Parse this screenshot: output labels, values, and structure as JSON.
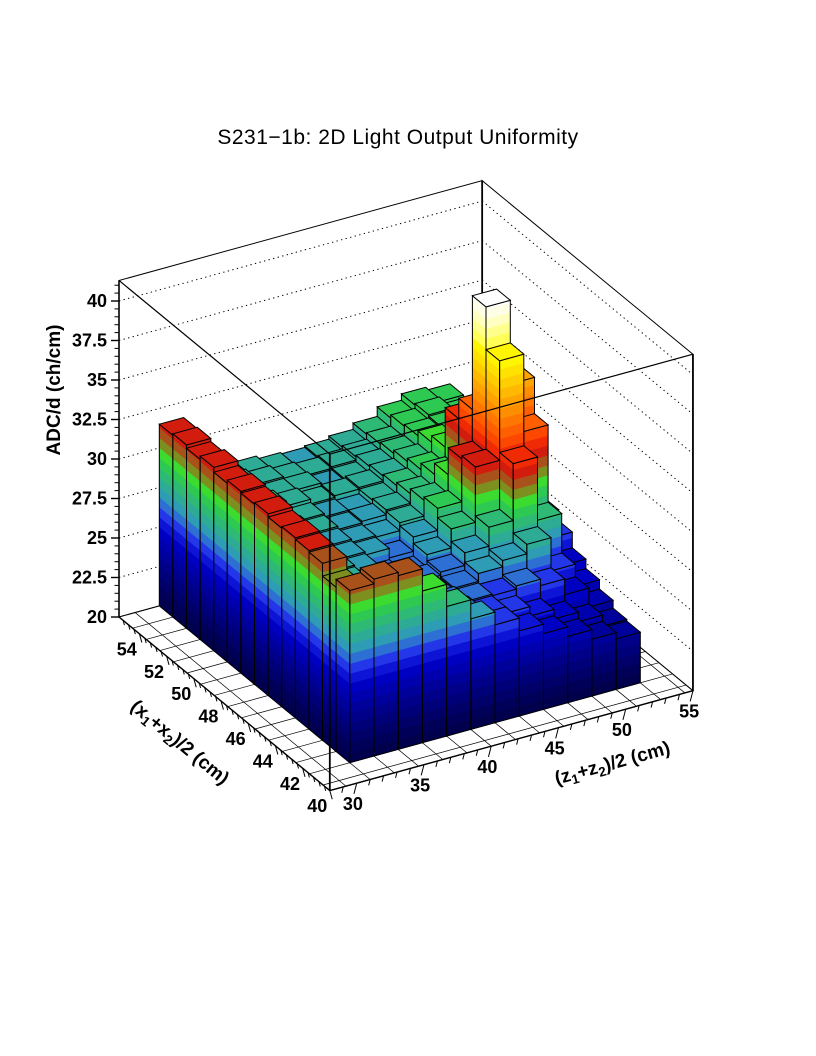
{
  "title": "S231−1b: 2D Light Output Uniformity",
  "chart_data": {
    "type": "heatmap",
    "representation": "3d_lego_histogram",
    "title": "S231−1b: 2D Light Output Uniformity",
    "x_axis": {
      "title_parts": [
        [
          "(x",
          false
        ],
        [
          "1",
          true
        ],
        [
          "+x",
          false
        ],
        [
          "2",
          true
        ],
        [
          ")/2 (cm)",
          false
        ]
      ],
      "tick_labels": [
        "40",
        "42",
        "44",
        "46",
        "48",
        "50",
        "52",
        "54"
      ],
      "tick_values": [
        40,
        42,
        44,
        46,
        48,
        50,
        52,
        54
      ],
      "minor_step": 0.4,
      "range": [
        40,
        55.5
      ]
    },
    "y_axis": {
      "title_parts": [
        [
          "(z",
          false
        ],
        [
          "1",
          true
        ],
        [
          "+z",
          false
        ],
        [
          "2",
          true
        ],
        [
          ")/2 (cm)",
          false
        ]
      ],
      "tick_labels": [
        "30",
        "35",
        "40",
        "45",
        "50",
        "55"
      ],
      "tick_values": [
        30,
        35,
        40,
        45,
        50,
        55
      ],
      "minor_step": 1,
      "range": [
        28,
        55
      ]
    },
    "z_axis": {
      "title_parts": [
        [
          "ADC/d (ch/cm)",
          false
        ]
      ],
      "tick_labels": [
        "20",
        "22.5",
        "25",
        "27.5",
        "30",
        "32.5",
        "35",
        "37.5",
        "40"
      ],
      "tick_values": [
        20,
        22.5,
        25,
        27.5,
        30,
        32.5,
        35,
        37.5,
        40
      ],
      "minor_step": 0.5,
      "range": [
        20,
        41.3
      ]
    },
    "grid": {
      "floor_grid": true,
      "wall_z_gridlines": [
        22.5,
        25,
        27.5,
        30,
        32.5,
        35,
        37.5,
        40
      ],
      "wall_gridline_style": "dotted"
    },
    "bins": {
      "x_centers": [
        42,
        43,
        44,
        45,
        46,
        47,
        48,
        49,
        50,
        51,
        52,
        53,
        54,
        55
      ],
      "x_width": 1.0,
      "y_centers": [
        31.9,
        33.7,
        35.5,
        37.3,
        39.1,
        40.9,
        42.7,
        44.5,
        46.3,
        48.1,
        49.9,
        51.7
      ],
      "y_width": 1.8
    },
    "values": [
      [
        30.9,
        31.2,
        31.0,
        29.6,
        28.2,
        27.0,
        26.2,
        25.4,
        24.8,
        24.2,
        23.6,
        23.2
      ],
      [
        30.4,
        29.0,
        28.0,
        27.4,
        27.0,
        26.6,
        26.2,
        25.8,
        25.2,
        24.6,
        24.0,
        23.3
      ],
      [
        31.2,
        27.9,
        27.5,
        27.1,
        26.8,
        26.5,
        26.3,
        26.2,
        26.4,
        26.0,
        25.0,
        23.8
      ],
      [
        31.3,
        27.9,
        27.5,
        27.1,
        26.6,
        26.3,
        26.4,
        26.9,
        27.3,
        27.9,
        25.8,
        24.4
      ],
      [
        31.4,
        27.9,
        27.6,
        27.2,
        26.4,
        26.5,
        26.7,
        27.5,
        28.7,
        32.3,
        28.3,
        25.0
      ],
      [
        31.3,
        28.0,
        27.7,
        27.3,
        26.5,
        26.3,
        27.1,
        28.3,
        31.8,
        38.1,
        33.2,
        26.0
      ],
      [
        31.5,
        28.1,
        27.7,
        27.4,
        27.2,
        26.6,
        27.5,
        28.9,
        31.6,
        40.8,
        35.5,
        26.7
      ],
      [
        31.4,
        28.1,
        27.8,
        27.5,
        27.3,
        27.2,
        27.7,
        28.7,
        29.9,
        33.6,
        32.0,
        28.4
      ],
      [
        31.5,
        28.3,
        28.0,
        27.6,
        27.4,
        27.5,
        27.8,
        28.4,
        29.2,
        32.3,
        28.7,
        28.6
      ],
      [
        31.3,
        28.2,
        27.9,
        27.7,
        27.5,
        27.4,
        27.7,
        28.2,
        28.8,
        29.8,
        28.8,
        28.2
      ],
      [
        31.6,
        28.5,
        28.2,
        27.9,
        27.6,
        27.7,
        27.8,
        28.1,
        28.6,
        29.4,
        29.0,
        28.4
      ],
      [
        31.4,
        28.3,
        28.0,
        27.8,
        27.8,
        27.5,
        27.6,
        28.0,
        28.4,
        29.1,
        29.2,
        28.6
      ],
      [
        31.6,
        28.4,
        28.1,
        27.9,
        27.7,
        27.6,
        27.7,
        27.9,
        28.3,
        29.0,
        29.3,
        28.8
      ],
      [
        31.5,
        28.2,
        28.0,
        27.8,
        27.6,
        27.5,
        27.6,
        27.8,
        28.2,
        28.8,
        29.2,
        29.0
      ]
    ],
    "palette": [
      "#00004d",
      "#000059",
      "#000068",
      "#000078",
      "#000089",
      "#00009b",
      "#0000ae",
      "#0000c2",
      "#0e14d6",
      "#2337e8",
      "#2d6fd3",
      "#2e9cb4",
      "#2eab95",
      "#2eba74",
      "#2ec952",
      "#3cdb30",
      "#7d8f1e",
      "#a9511a",
      "#d11c0e",
      "#ef2a05",
      "#fb4700",
      "#ff5f00",
      "#ff7600",
      "#ff8d00",
      "#ffa300",
      "#ffb900",
      "#ffce00",
      "#ffe200",
      "#fff500",
      "#ffff57",
      "#ffff8e",
      "#ffffc2",
      "#ffffe8",
      "#ffffff"
    ],
    "frame_color": "#000000",
    "background_color": "#ffffff"
  }
}
